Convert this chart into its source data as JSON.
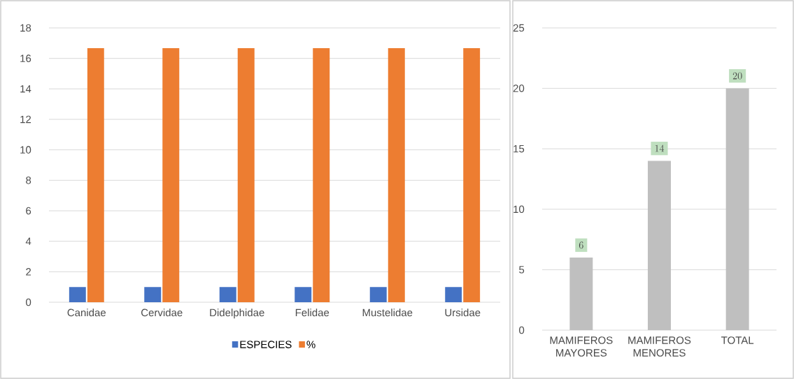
{
  "chart_data": [
    {
      "type": "bar",
      "categories": [
        "Canidae",
        "Cervidae",
        "Didelphidae",
        "Felidae",
        "Mustelidae",
        "Ursidae"
      ],
      "series": [
        {
          "name": "ESPECIES",
          "color": "#4472c4",
          "values": [
            1,
            1,
            1,
            1,
            1,
            1
          ]
        },
        {
          "name": "%",
          "color": "#ed7d31",
          "values": [
            16.67,
            16.67,
            16.67,
            16.67,
            16.67,
            16.67
          ]
        }
      ],
      "ylim": [
        0,
        18
      ],
      "yticks": [
        0,
        2,
        4,
        6,
        8,
        10,
        12,
        14,
        16,
        18
      ],
      "grid": "y",
      "legend": "bottom"
    },
    {
      "type": "bar",
      "categories": [
        "MAMIFEROS MAYORES",
        "MAMIFEROS MENORES",
        "TOTAL"
      ],
      "series": [
        {
          "color": "#bfbfbf",
          "values": [
            6,
            14,
            20
          ]
        }
      ],
      "ylim": [
        0,
        25
      ],
      "yticks": [
        0,
        5,
        10,
        15,
        20,
        25
      ],
      "grid": "y",
      "data_labels": true
    }
  ]
}
